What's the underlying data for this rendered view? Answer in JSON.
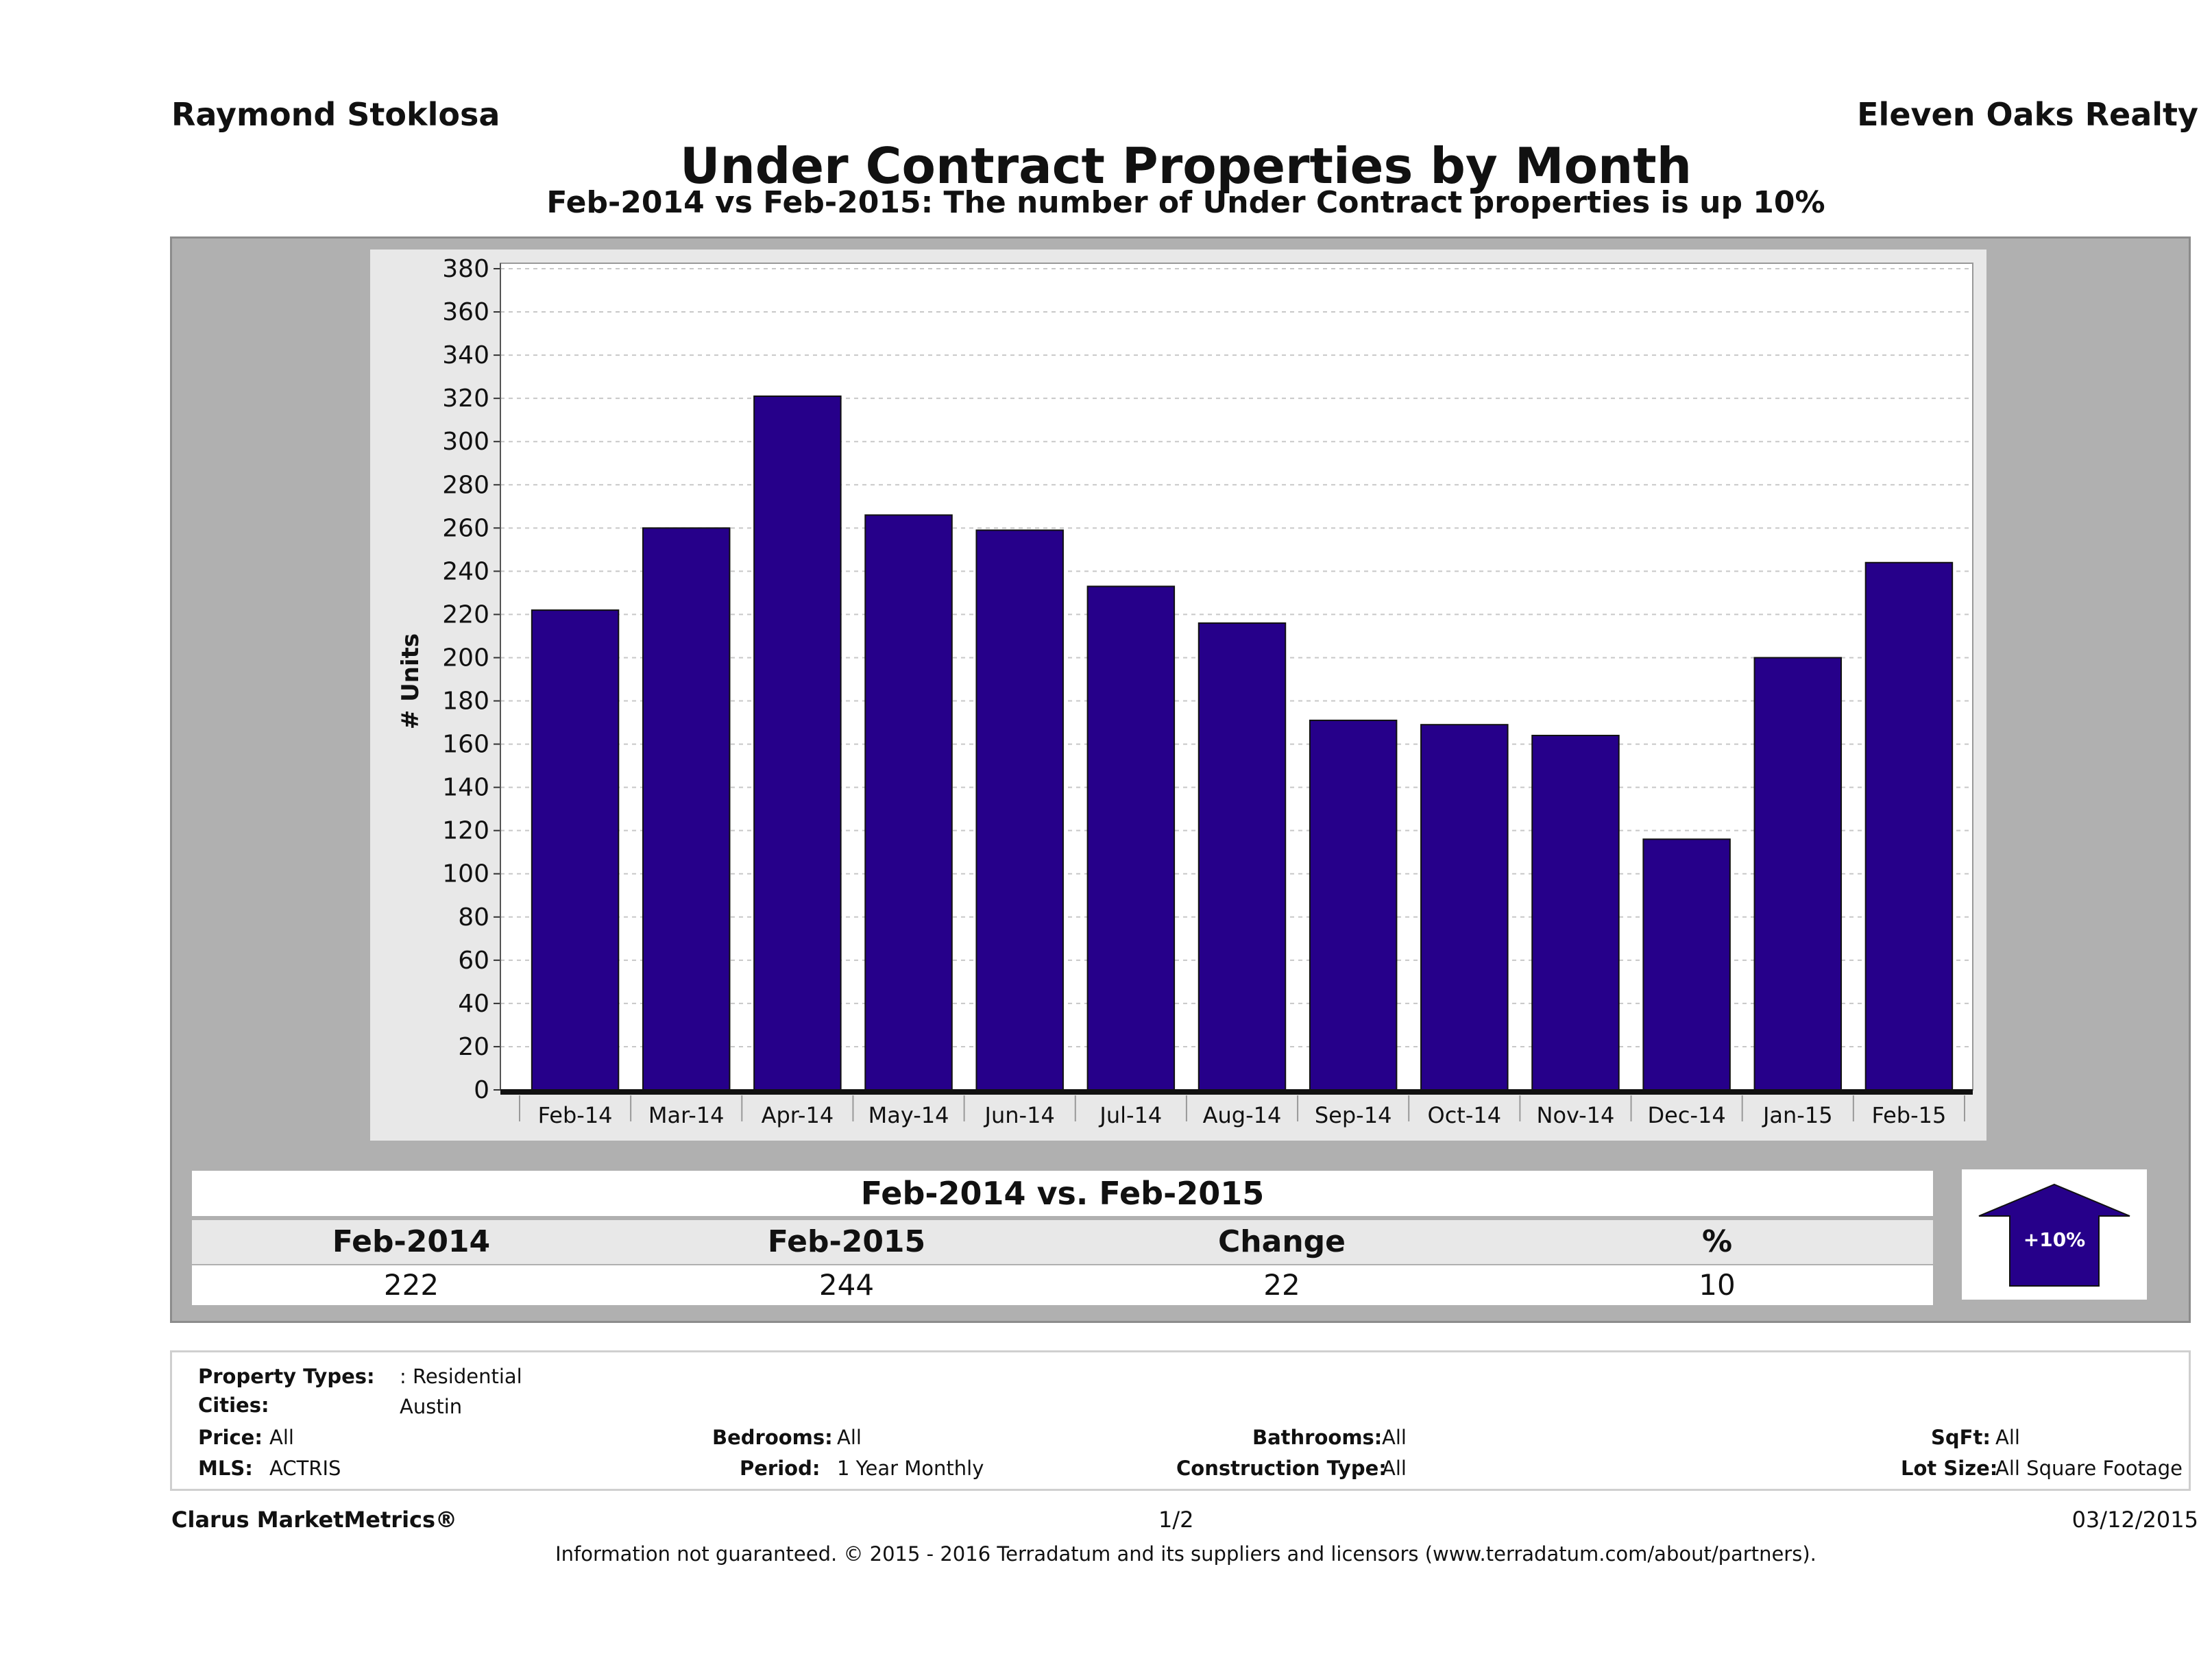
{
  "header": {
    "agent": "Raymond Stoklosa",
    "brokerage": "Eleven Oaks Realty",
    "title": "Under Contract Properties by Month",
    "subtitle": "Feb-2014 vs Feb-2015: The number of Under Contract   properties is up 10%"
  },
  "chart_data": {
    "type": "bar",
    "categories": [
      "Feb-14",
      "Mar-14",
      "Apr-14",
      "May-14",
      "Jun-14",
      "Jul-14",
      "Aug-14",
      "Sep-14",
      "Oct-14",
      "Nov-14",
      "Dec-14",
      "Jan-15",
      "Feb-15"
    ],
    "values": [
      222,
      260,
      321,
      266,
      259,
      233,
      216,
      171,
      169,
      164,
      116,
      200,
      244
    ],
    "ylabel": "# Units",
    "ylim": [
      0,
      380
    ],
    "yticks": [
      "0",
      "20",
      "40",
      "60",
      "80",
      "100",
      "120",
      "140",
      "160",
      "180",
      "200",
      "220",
      "240",
      "260",
      "280",
      "300",
      "320",
      "340",
      "360",
      "380"
    ],
    "bar_color": "#26008a",
    "grid": true
  },
  "summary": {
    "title": "Feb-2014 vs. Feb-2015",
    "headers": [
      "Feb-2014",
      "Feb-2015",
      "Change",
      "%"
    ],
    "values": [
      "222",
      "244",
      "22",
      "10"
    ],
    "badge": "+10%",
    "badge_icon": "up-arrow-icon"
  },
  "criteria": {
    "property_types_label": "Property Types:",
    "property_types_value": ": Residential",
    "cities_label": "Cities:",
    "cities_value": "Austin",
    "price_label": "Price:",
    "price_value": "All",
    "bedrooms_label": "Bedrooms:",
    "bedrooms_value": "All",
    "bathrooms_label": "Bathrooms:",
    "bathrooms_value": "All",
    "sqft_label": "SqFt:",
    "sqft_value": "All",
    "mls_label": "MLS:",
    "mls_value": "ACTRIS",
    "period_label": "Period:",
    "period_value": "1 Year Monthly",
    "construction_label": "Construction Type:",
    "construction_value": "All",
    "lot_label": "Lot Size:",
    "lot_value": "All Square Footage"
  },
  "footer": {
    "product": "Clarus MarketMetrics®",
    "page": "1/2",
    "date": "03/12/2015",
    "disclaimer": "Information not guaranteed. © 2015 - 2016 Terradatum and its suppliers and licensors (www.terradatum.com/about/partners)."
  }
}
